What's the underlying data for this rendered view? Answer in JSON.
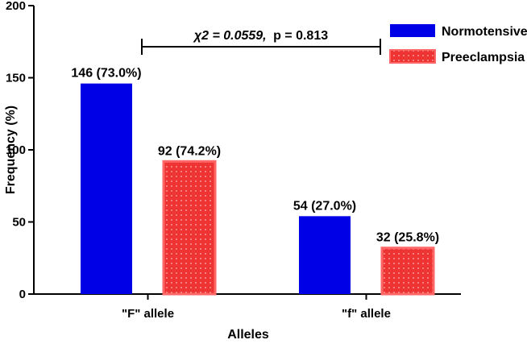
{
  "chart_data": {
    "type": "bar",
    "title": "",
    "xlabel": "Alleles",
    "ylabel": "Frequency (%)",
    "ylim": [
      0,
      200
    ],
    "yticks": [
      0,
      50,
      100,
      150,
      200
    ],
    "categories": [
      "\"F\" allele",
      "\"f\" allele"
    ],
    "series": [
      {
        "name": "Normotensive",
        "values": [
          146,
          54
        ],
        "labels": [
          "146 (73.0%)",
          "54 (27.0%)"
        ],
        "color": "#0000e6"
      },
      {
        "name": "Preeclampsia",
        "values": [
          92,
          32
        ],
        "labels": [
          "92 (74.2%)",
          "32 (25.8%)"
        ],
        "color": "#ee3333"
      }
    ],
    "annotation": {
      "stat": "χ2 = 0.0559,",
      "p": "p = 0.813"
    },
    "legend_position": "top-right",
    "grid": false
  }
}
